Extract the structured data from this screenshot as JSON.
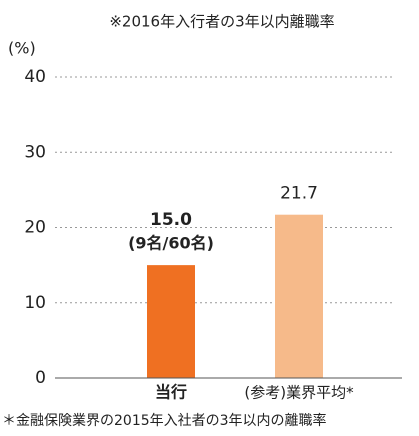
{
  "chart_data": {
    "type": "bar",
    "title": "※2016年入行者の3年以内離職率",
    "y_label": "(%)",
    "categories": [
      "当行",
      "(参考)業界平均*"
    ],
    "values": [
      15.0,
      21.7
    ],
    "value_labels": [
      "15.0",
      "21.7"
    ],
    "colors": [
      "#ef7022",
      "#f6ba8a"
    ],
    "annotations": [
      "(9名/60名)"
    ],
    "footnote": "＊金融保険業界の2015年入社者の3年以内の離職率",
    "ylim": [
      0,
      40
    ],
    "yticks": [
      0,
      10,
      20,
      30,
      40
    ],
    "grid": true
  }
}
